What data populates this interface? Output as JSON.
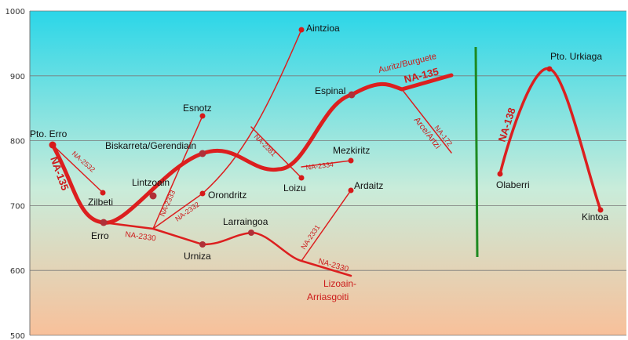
{
  "chart_data": {
    "type": "line",
    "title": "",
    "xlabel": "",
    "ylabel": "",
    "ylim": [
      500,
      1000
    ],
    "yticks": [
      "500",
      "600",
      "700",
      "800",
      "900",
      "1000"
    ],
    "grid": true,
    "background": {
      "top": "#2bd6e8",
      "middle": "#c9ecda",
      "bottom": "#f8c09a"
    },
    "colors": {
      "road": "#dc1f1f",
      "point": "#d61a1a",
      "node": "#b03038",
      "divider": "#1e8a22",
      "grid": "#7a7a7a"
    },
    "places": [
      {
        "name": "Pto. Erro",
        "elevation": 793
      },
      {
        "name": "Zilbeti",
        "elevation": 720
      },
      {
        "name": "Erro",
        "elevation": 672
      },
      {
        "name": "Lintzoain",
        "elevation": 715
      },
      {
        "name": "Biskarreta/Gerendiain",
        "elevation": 780
      },
      {
        "name": "Esnotz",
        "elevation": 838
      },
      {
        "name": "Orondritz",
        "elevation": 718
      },
      {
        "name": "Urniza",
        "elevation": 640
      },
      {
        "name": "Larraingoa",
        "elevation": 657
      },
      {
        "name": "Aintzioa",
        "elevation": 970
      },
      {
        "name": "Loizu",
        "elevation": 743
      },
      {
        "name": "Mezkiritz",
        "elevation": 770
      },
      {
        "name": "Espinal",
        "elevation": 870
      },
      {
        "name": "Ardaitz",
        "elevation": 722
      },
      {
        "name": "Olaberri",
        "elevation": 750
      },
      {
        "name": "Pto. Urkiaga",
        "elevation": 910
      },
      {
        "name": "Kintoa",
        "elevation": 690
      }
    ],
    "roads": {
      "na135": "NA-135",
      "na2532": "NA-2532",
      "na2333": "NA-2333",
      "na2332": "NA-2332",
      "na2381": "NA-2381",
      "na2334": "NA-2334",
      "na2330": "NA-2330",
      "na2331": "NA-2331",
      "na172": "NA-172",
      "na138": "NA-138"
    },
    "destinations": {
      "auritz": "Auritz/Burguete",
      "arce": "Arce/Artzi",
      "lizoain_1": "Lizoain-",
      "lizoain_2": "Arriasgoiti"
    }
  }
}
